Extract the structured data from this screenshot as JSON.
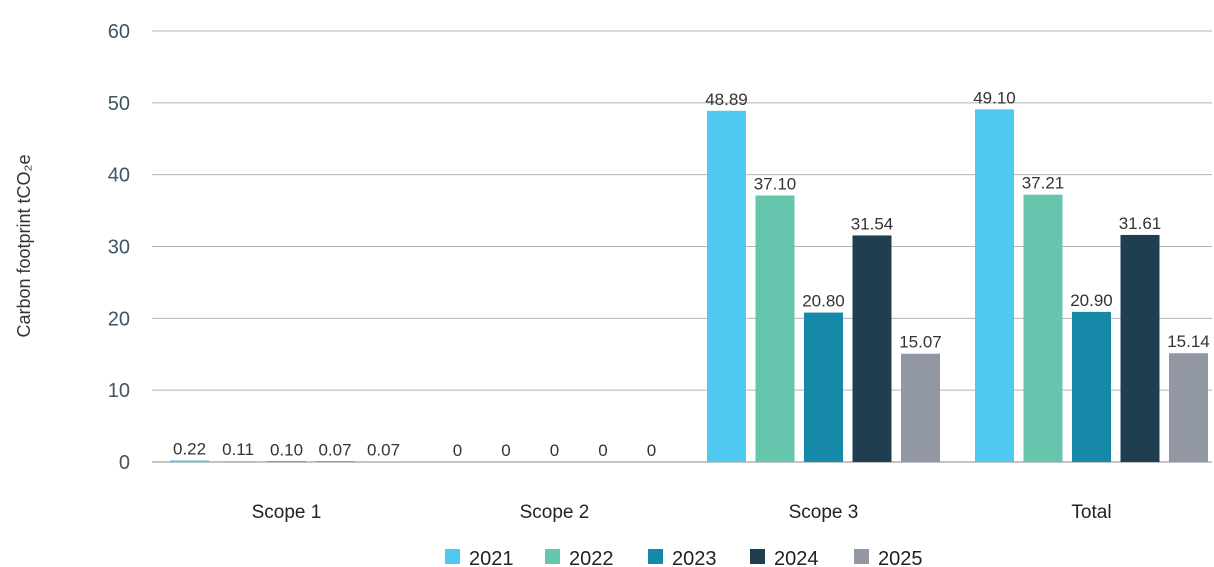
{
  "chart_data": {
    "type": "bar",
    "ylabel": "Carbon footprint tCO₂e",
    "ylim": [
      0,
      60
    ],
    "yticks": [
      0,
      10,
      20,
      30,
      40,
      50,
      60
    ],
    "grid": true,
    "legend_position": "bottom",
    "categories": [
      "Scope 1",
      "Scope 2",
      "Scope 3",
      "Total"
    ],
    "series": [
      {
        "name": "2021",
        "color": "#4fc9f2",
        "values": [
          0.22,
          0,
          48.89,
          49.1
        ],
        "labels": [
          "0.22",
          "0",
          "48.89",
          "49.10"
        ]
      },
      {
        "name": "2022",
        "color": "#66c5ad",
        "values": [
          0.11,
          0,
          37.1,
          37.21
        ],
        "labels": [
          "0.11",
          "0",
          "37.10",
          "37.21"
        ]
      },
      {
        "name": "2023",
        "color": "#1688a8",
        "values": [
          0.1,
          0,
          20.8,
          20.9
        ],
        "labels": [
          "0.10",
          "0",
          "20.80",
          "20.90"
        ]
      },
      {
        "name": "2024",
        "color": "#1f3f51",
        "values": [
          0.07,
          0,
          31.54,
          31.61
        ],
        "labels": [
          "0.07",
          "0",
          "31.54",
          "31.61"
        ]
      },
      {
        "name": "2025",
        "color": "#9197a3",
        "values": [
          0.07,
          0,
          15.07,
          15.14
        ],
        "labels": [
          "0.07",
          "0",
          "15.07",
          "15.14"
        ]
      }
    ]
  }
}
